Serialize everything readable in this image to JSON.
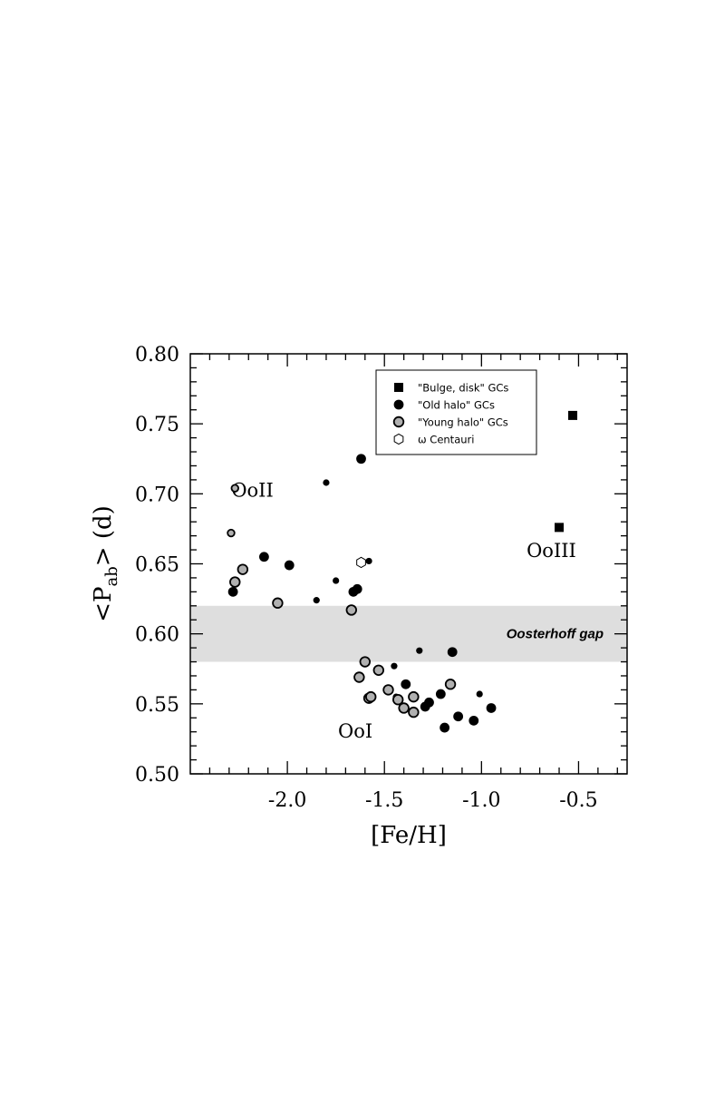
{
  "chart_data": {
    "type": "scatter",
    "xlabel": "[Fe/H]",
    "ylabel_main": "<P",
    "ylabel_sub": "ab",
    "ylabel_tail": "> (d)",
    "xlim": [
      -2.5,
      -0.25
    ],
    "ylim": [
      0.5,
      0.8
    ],
    "x_ticks": [
      -2.0,
      -1.5,
      -1.0,
      -0.5
    ],
    "x_tick_labels": [
      "-2.0",
      "-1.5",
      "-1.0",
      "-0.5"
    ],
    "y_ticks": [
      0.5,
      0.55,
      0.6,
      0.65,
      0.7,
      0.75,
      0.8
    ],
    "y_tick_labels": [
      "0.50",
      "0.55",
      "0.60",
      "0.65",
      "0.70",
      "0.75",
      "0.80"
    ],
    "gap_band": {
      "y_from": 0.58,
      "y_to": 0.62,
      "label": "Oosterhoff gap",
      "color": "#dedede"
    },
    "annotations": [
      {
        "text": "OoII",
        "x": -2.18,
        "y": 0.703
      },
      {
        "text": "OoIII",
        "x": -0.64,
        "y": 0.66
      },
      {
        "text": "OoI",
        "x": -1.65,
        "y": 0.531
      }
    ],
    "legend": {
      "position": "top-right",
      "entries": [
        {
          "marker": "square",
          "label": "\"Bulge, disk\" GCs"
        },
        {
          "marker": "black-circle",
          "label": "\"Old halo\" GCs"
        },
        {
          "marker": "gray-circle",
          "label": "\"Young halo\" GCs"
        },
        {
          "marker": "hexagon",
          "label": "ω Centauri"
        }
      ]
    },
    "colors": {
      "black": "#000000",
      "gray": "#b0b0b0",
      "white": "#ffffff"
    },
    "series": [
      {
        "name": "\"Bulge, disk\" GCs",
        "marker": "square",
        "points": [
          {
            "x": -0.53,
            "y": 0.756
          },
          {
            "x": -0.6,
            "y": 0.676
          }
        ]
      },
      {
        "name": "\"Old halo\" GCs",
        "marker": "black-circle",
        "points": [
          {
            "x": -1.62,
            "y": 0.725,
            "size": "large"
          },
          {
            "x": -1.8,
            "y": 0.708,
            "size": "small"
          },
          {
            "x": -2.12,
            "y": 0.655,
            "size": "large"
          },
          {
            "x": -1.99,
            "y": 0.649,
            "size": "large"
          },
          {
            "x": -2.28,
            "y": 0.63,
            "size": "large"
          },
          {
            "x": -1.75,
            "y": 0.638,
            "size": "small"
          },
          {
            "x": -1.85,
            "y": 0.624,
            "size": "small"
          },
          {
            "x": -1.66,
            "y": 0.63,
            "size": "large"
          },
          {
            "x": -1.64,
            "y": 0.632,
            "size": "large"
          },
          {
            "x": -1.58,
            "y": 0.652,
            "size": "small"
          },
          {
            "x": -1.32,
            "y": 0.588,
            "size": "small"
          },
          {
            "x": -1.15,
            "y": 0.587,
            "size": "large"
          },
          {
            "x": -1.45,
            "y": 0.577,
            "size": "small"
          },
          {
            "x": -1.39,
            "y": 0.564,
            "size": "large"
          },
          {
            "x": -1.44,
            "y": 0.555,
            "size": "small"
          },
          {
            "x": -1.21,
            "y": 0.557,
            "size": "large"
          },
          {
            "x": -1.27,
            "y": 0.551,
            "size": "large"
          },
          {
            "x": -1.29,
            "y": 0.548,
            "size": "large"
          },
          {
            "x": -1.12,
            "y": 0.541,
            "size": "large"
          },
          {
            "x": -1.04,
            "y": 0.538,
            "size": "large"
          },
          {
            "x": -1.19,
            "y": 0.533,
            "size": "large"
          },
          {
            "x": -1.01,
            "y": 0.557,
            "size": "small"
          },
          {
            "x": -0.95,
            "y": 0.547,
            "size": "large"
          }
        ]
      },
      {
        "name": "\"Young halo\" GCs",
        "marker": "gray-circle",
        "points": [
          {
            "x": -2.27,
            "y": 0.704,
            "size": "small"
          },
          {
            "x": -2.29,
            "y": 0.672,
            "size": "small"
          },
          {
            "x": -2.27,
            "y": 0.637,
            "size": "large"
          },
          {
            "x": -2.23,
            "y": 0.646,
            "size": "large"
          },
          {
            "x": -2.05,
            "y": 0.622,
            "size": "large"
          },
          {
            "x": -1.67,
            "y": 0.617,
            "size": "large"
          },
          {
            "x": -1.6,
            "y": 0.58,
            "size": "large"
          },
          {
            "x": -1.53,
            "y": 0.574,
            "size": "large"
          },
          {
            "x": -1.63,
            "y": 0.569,
            "size": "large"
          },
          {
            "x": -1.48,
            "y": 0.56,
            "size": "large"
          },
          {
            "x": -1.58,
            "y": 0.554,
            "size": "large"
          },
          {
            "x": -1.57,
            "y": 0.555,
            "size": "large"
          },
          {
            "x": -1.43,
            "y": 0.553,
            "size": "large"
          },
          {
            "x": -1.35,
            "y": 0.555,
            "size": "large"
          },
          {
            "x": -1.4,
            "y": 0.547,
            "size": "large"
          },
          {
            "x": -1.35,
            "y": 0.544,
            "size": "large"
          },
          {
            "x": -1.16,
            "y": 0.564,
            "size": "large"
          }
        ]
      },
      {
        "name": "ω Centauri",
        "marker": "hexagon",
        "points": [
          {
            "x": -1.62,
            "y": 0.651
          }
        ]
      }
    ]
  }
}
